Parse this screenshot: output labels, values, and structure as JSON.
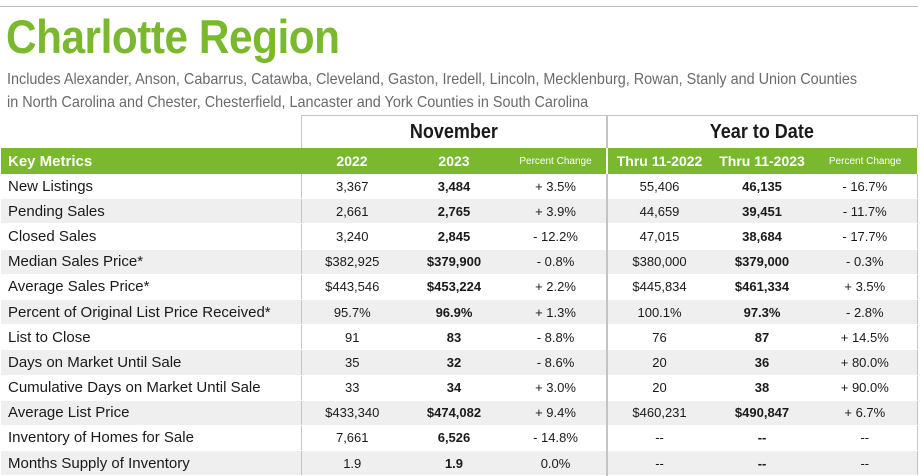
{
  "title": "Charlotte Region",
  "subtitle": {
    "line1": "Includes Alexander, Anson, Cabarrus, Catawba, Cleveland, Gaston, Iredell, Lincoln, Mecklenburg, Rowan, Stanly and Union Counties",
    "line2": "in North Carolina and Chester, Chesterfield, Lancaster and York Counties in South Carolina"
  },
  "groups": {
    "november": "November",
    "ytd": "Year to Date"
  },
  "headers": {
    "metric": "Key Metrics",
    "nov_2022": "2022",
    "nov_2023": "2023",
    "nov_pct": "Percent Change",
    "ytd_2022": "Thru 11-2022",
    "ytd_2023": "Thru 11-2023",
    "ytd_pct": "Percent Change"
  },
  "colors": {
    "brand_green": "#7ab92e",
    "row_alt": "#efefef"
  },
  "rows": [
    {
      "name": "New Listings",
      "nov_2022": "3,367",
      "nov_2023": "3,484",
      "nov_pct": "+ 3.5%",
      "ytd_2022": "55,406",
      "ytd_2023": "46,135",
      "ytd_pct": "- 16.7%"
    },
    {
      "name": "Pending Sales",
      "nov_2022": "2,661",
      "nov_2023": "2,765",
      "nov_pct": "+ 3.9%",
      "ytd_2022": "44,659",
      "ytd_2023": "39,451",
      "ytd_pct": "- 11.7%"
    },
    {
      "name": "Closed Sales",
      "nov_2022": "3,240",
      "nov_2023": "2,845",
      "nov_pct": "- 12.2%",
      "ytd_2022": "47,015",
      "ytd_2023": "38,684",
      "ytd_pct": "- 17.7%"
    },
    {
      "name": "Median Sales Price*",
      "nov_2022": "$382,925",
      "nov_2023": "$379,900",
      "nov_pct": "- 0.8%",
      "ytd_2022": "$380,000",
      "ytd_2023": "$379,000",
      "ytd_pct": "- 0.3%"
    },
    {
      "name": "Average Sales Price*",
      "nov_2022": "$443,546",
      "nov_2023": "$453,224",
      "nov_pct": "+ 2.2%",
      "ytd_2022": "$445,834",
      "ytd_2023": "$461,334",
      "ytd_pct": "+ 3.5%"
    },
    {
      "name": "Percent of Original List Price Received*",
      "nov_2022": "95.7%",
      "nov_2023": "96.9%",
      "nov_pct": "+ 1.3%",
      "ytd_2022": "100.1%",
      "ytd_2023": "97.3%",
      "ytd_pct": "- 2.8%"
    },
    {
      "name": "List to Close",
      "nov_2022": "91",
      "nov_2023": "83",
      "nov_pct": "- 8.8%",
      "ytd_2022": "76",
      "ytd_2023": "87",
      "ytd_pct": "+ 14.5%"
    },
    {
      "name": "Days on Market Until Sale",
      "nov_2022": "35",
      "nov_2023": "32",
      "nov_pct": "- 8.6%",
      "ytd_2022": "20",
      "ytd_2023": "36",
      "ytd_pct": "+ 80.0%"
    },
    {
      "name": "Cumulative Days on Market Until Sale",
      "nov_2022": "33",
      "nov_2023": "34",
      "nov_pct": "+ 3.0%",
      "ytd_2022": "20",
      "ytd_2023": "38",
      "ytd_pct": "+ 90.0%"
    },
    {
      "name": "Average List Price",
      "nov_2022": "$433,340",
      "nov_2023": "$474,082",
      "nov_pct": "+ 9.4%",
      "ytd_2022": "$460,231",
      "ytd_2023": "$490,847",
      "ytd_pct": "+ 6.7%"
    },
    {
      "name": "Inventory of Homes for Sale",
      "nov_2022": "7,661",
      "nov_2023": "6,526",
      "nov_pct": "- 14.8%",
      "ytd_2022": "--",
      "ytd_2023": "--",
      "ytd_pct": "--"
    },
    {
      "name": "Months Supply of Inventory",
      "nov_2022": "1.9",
      "nov_2023": "1.9",
      "nov_pct": "0.0%",
      "ytd_2022": "--",
      "ytd_2023": "--",
      "ytd_pct": "--"
    }
  ]
}
